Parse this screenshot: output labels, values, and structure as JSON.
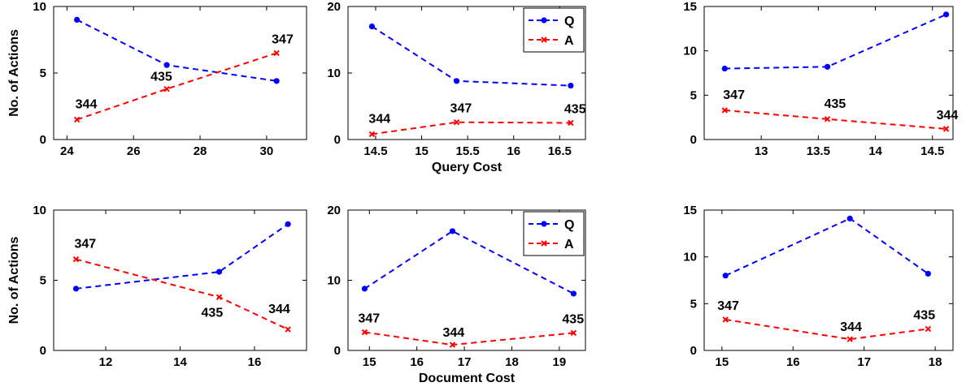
{
  "chart_data": [
    {
      "type": "line",
      "ylabel": "No. of Actions",
      "xlabel": "",
      "xlim": [
        23.6,
        31.2
      ],
      "ylim": [
        0,
        10
      ],
      "xticks": [
        24,
        26,
        28,
        30
      ],
      "yticks": [
        0,
        5,
        10
      ],
      "legend": null,
      "series": [
        {
          "key": "Q",
          "color": "#0000ff",
          "marker": "dot",
          "x": [
            24.3,
            27.0,
            30.3
          ],
          "y": [
            9.0,
            5.6,
            4.4
          ]
        },
        {
          "key": "A",
          "color": "#ff0000",
          "marker": "x",
          "x": [
            24.3,
            27.0,
            30.3
          ],
          "y": [
            1.5,
            3.8,
            6.5
          ]
        }
      ],
      "annotations": [
        {
          "text": "344",
          "x": 24.3,
          "y": 1.5
        },
        {
          "text": "435",
          "x": 27.0,
          "y": 3.8
        },
        {
          "text": "347",
          "x": 30.3,
          "y": 6.5
        }
      ]
    },
    {
      "type": "line",
      "ylabel": "",
      "xlabel": "Query Cost",
      "xlim": [
        14.2,
        16.78
      ],
      "ylim": [
        0,
        20
      ],
      "xticks": [
        14.5,
        15,
        15.5,
        16,
        16.5
      ],
      "yticks": [
        0,
        10,
        20
      ],
      "legend": {
        "position": "top-right",
        "entries": [
          "Q",
          "A"
        ]
      },
      "series": [
        {
          "key": "Q",
          "name": "Q",
          "color": "#0000ff",
          "marker": "dot",
          "x": [
            14.46,
            15.38,
            16.62
          ],
          "y": [
            17.0,
            8.8,
            8.1
          ]
        },
        {
          "key": "A",
          "name": "A",
          "color": "#ff0000",
          "marker": "x",
          "x": [
            14.46,
            15.38,
            16.62
          ],
          "y": [
            0.8,
            2.6,
            2.5
          ]
        }
      ],
      "annotations": [
        {
          "text": "344",
          "x": 14.46,
          "y": 0.8
        },
        {
          "text": "347",
          "x": 15.38,
          "y": 2.6
        },
        {
          "text": "435",
          "x": 16.62,
          "y": 2.5
        }
      ]
    },
    {
      "type": "line",
      "ylabel": "",
      "xlabel": "",
      "xlim": [
        12.5,
        14.68
      ],
      "ylim": [
        0,
        15
      ],
      "xticks": [
        13,
        13.5,
        14,
        14.5
      ],
      "yticks": [
        0,
        5,
        10,
        15
      ],
      "legend": null,
      "series": [
        {
          "key": "Q",
          "color": "#0000ff",
          "marker": "dot",
          "x": [
            12.68,
            13.58,
            14.62
          ],
          "y": [
            8.0,
            8.2,
            14.1
          ]
        },
        {
          "key": "A",
          "color": "#ff0000",
          "marker": "x",
          "x": [
            12.68,
            13.58,
            14.62
          ],
          "y": [
            3.3,
            2.3,
            1.2
          ]
        }
      ],
      "annotations": [
        {
          "text": "347",
          "x": 12.68,
          "y": 3.3
        },
        {
          "text": "435",
          "x": 13.58,
          "y": 2.3
        },
        {
          "text": "344",
          "x": 14.62,
          "y": 1.2
        }
      ]
    },
    {
      "type": "line",
      "ylabel": "No. of Actions",
      "xlabel": "",
      "xlim": [
        10.6,
        17.4
      ],
      "ylim": [
        0,
        10
      ],
      "xticks": [
        12,
        14,
        16
      ],
      "yticks": [
        0,
        5,
        10
      ],
      "legend": null,
      "series": [
        {
          "key": "Q",
          "color": "#0000ff",
          "marker": "dot",
          "x": [
            11.2,
            15.05,
            16.9
          ],
          "y": [
            4.4,
            5.6,
            9.0
          ]
        },
        {
          "key": "A",
          "color": "#ff0000",
          "marker": "x",
          "x": [
            11.2,
            15.05,
            16.9
          ],
          "y": [
            6.5,
            3.8,
            1.5
          ]
        }
      ],
      "annotations": [
        {
          "text": "347",
          "x": 11.2,
          "y": 6.5
        },
        {
          "text": "435",
          "x": 15.05,
          "y": 3.8
        },
        {
          "text": "344",
          "x": 16.9,
          "y": 1.5
        }
      ]
    },
    {
      "type": "line",
      "ylabel": "",
      "xlabel": "Document Cost",
      "xlim": [
        14.55,
        19.55
      ],
      "ylim": [
        0,
        20
      ],
      "xticks": [
        15,
        16,
        17,
        18,
        19
      ],
      "yticks": [
        0,
        10,
        20
      ],
      "legend": {
        "position": "top-right",
        "entries": [
          "Q",
          "A"
        ]
      },
      "series": [
        {
          "key": "Q",
          "name": "Q",
          "color": "#0000ff",
          "marker": "dot",
          "x": [
            14.9,
            16.75,
            19.3
          ],
          "y": [
            8.8,
            17.0,
            8.1
          ]
        },
        {
          "key": "A",
          "name": "A",
          "color": "#ff0000",
          "marker": "x",
          "x": [
            14.9,
            16.75,
            19.3
          ],
          "y": [
            2.6,
            0.8,
            2.5
          ]
        }
      ],
      "annotations": [
        {
          "text": "347",
          "x": 14.9,
          "y": 2.6
        },
        {
          "text": "344",
          "x": 16.75,
          "y": 0.8
        },
        {
          "text": "435",
          "x": 19.3,
          "y": 2.5
        }
      ]
    },
    {
      "type": "line",
      "ylabel": "",
      "xlabel": "",
      "xlim": [
        14.75,
        18.25
      ],
      "ylim": [
        0,
        15
      ],
      "xticks": [
        15,
        16,
        17,
        18
      ],
      "yticks": [
        0,
        5,
        10,
        15
      ],
      "legend": null,
      "series": [
        {
          "key": "Q",
          "color": "#0000ff",
          "marker": "dot",
          "x": [
            15.05,
            16.8,
            17.9
          ],
          "y": [
            8.0,
            14.1,
            8.2
          ]
        },
        {
          "key": "A",
          "color": "#ff0000",
          "marker": "x",
          "x": [
            15.05,
            16.8,
            17.9
          ],
          "y": [
            3.3,
            1.2,
            2.3
          ]
        }
      ],
      "annotations": [
        {
          "text": "347",
          "x": 15.05,
          "y": 3.3
        },
        {
          "text": "344",
          "x": 16.8,
          "y": 1.2
        },
        {
          "text": "435",
          "x": 17.9,
          "y": 2.3
        }
      ]
    }
  ]
}
